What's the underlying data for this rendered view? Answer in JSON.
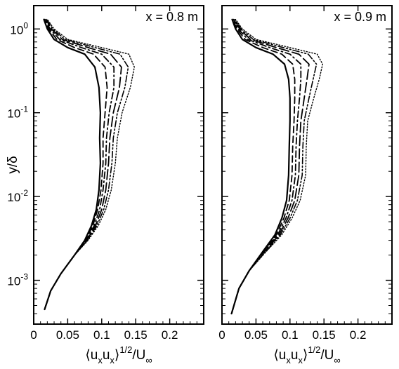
{
  "figure": {
    "ylabel": "y/δ"
  },
  "chart_data": [
    {
      "type": "line",
      "panel": "left",
      "annotation": "x = 0.8 m",
      "xlabel_parts": {
        "open": "⟨u",
        "sub1": "x",
        "mid": "u",
        "sub2": "x",
        "close": "⟩",
        "sup": "1/2",
        "tail": "/U",
        "sub3": "∞"
      },
      "ylabel": "y/δ",
      "xlim": [
        0,
        0.25
      ],
      "ylim": [
        0.0003,
        1.9
      ],
      "y_scale": "log",
      "x_ticks": [
        {
          "v": 0.05,
          "label": "0.05"
        },
        {
          "v": 0.1,
          "label": "0.1"
        },
        {
          "v": 0.15,
          "label": "0.15"
        },
        {
          "v": 0.2,
          "label": "0.2"
        },
        {
          "v": 0,
          "label": "0"
        }
      ],
      "y_ticks": [
        {
          "v": 0.001,
          "base": "10",
          "exp": "-3"
        },
        {
          "v": 0.01,
          "base": "10",
          "exp": "-2"
        },
        {
          "v": 0.1,
          "base": "10",
          "exp": "-1"
        },
        {
          "v": 1,
          "base": "10",
          "exp": "0"
        }
      ],
      "grid": false,
      "legend": "none",
      "series": [
        {
          "style": "solid",
          "points": [
            [
              0.016,
              0.00045
            ],
            [
              0.025,
              0.00075
            ],
            [
              0.04,
              0.0012
            ],
            [
              0.06,
              0.002
            ],
            [
              0.075,
              0.003
            ],
            [
              0.085,
              0.0045
            ],
            [
              0.092,
              0.007
            ],
            [
              0.096,
              0.012
            ],
            [
              0.098,
              0.025
            ],
            [
              0.097,
              0.05
            ],
            [
              0.098,
              0.1
            ],
            [
              0.096,
              0.2
            ],
            [
              0.09,
              0.35
            ],
            [
              0.075,
              0.5
            ],
            [
              0.05,
              0.6
            ],
            [
              0.03,
              0.75
            ],
            [
              0.02,
              1.0
            ],
            [
              0.015,
              1.3
            ]
          ]
        },
        {
          "style": "dash",
          "points": [
            [
              0.016,
              0.00045
            ],
            [
              0.025,
              0.00075
            ],
            [
              0.04,
              0.0012
            ],
            [
              0.06,
              0.002
            ],
            [
              0.076,
              0.003
            ],
            [
              0.087,
              0.0045
            ],
            [
              0.094,
              0.007
            ],
            [
              0.099,
              0.012
            ],
            [
              0.102,
              0.025
            ],
            [
              0.102,
              0.05
            ],
            [
              0.105,
              0.1
            ],
            [
              0.108,
              0.2
            ],
            [
              0.105,
              0.35
            ],
            [
              0.088,
              0.5
            ],
            [
              0.06,
              0.6
            ],
            [
              0.034,
              0.75
            ],
            [
              0.022,
              1.0
            ],
            [
              0.016,
              1.3
            ]
          ]
        },
        {
          "style": "dashdot",
          "points": [
            [
              0.016,
              0.00045
            ],
            [
              0.025,
              0.00075
            ],
            [
              0.04,
              0.0012
            ],
            [
              0.06,
              0.002
            ],
            [
              0.077,
              0.003
            ],
            [
              0.089,
              0.0045
            ],
            [
              0.097,
              0.007
            ],
            [
              0.102,
              0.012
            ],
            [
              0.106,
              0.025
            ],
            [
              0.107,
              0.05
            ],
            [
              0.111,
              0.1
            ],
            [
              0.118,
              0.2
            ],
            [
              0.118,
              0.35
            ],
            [
              0.1,
              0.5
            ],
            [
              0.07,
              0.6
            ],
            [
              0.038,
              0.75
            ],
            [
              0.024,
              1.0
            ],
            [
              0.017,
              1.3
            ]
          ]
        },
        {
          "style": "longdash",
          "points": [
            [
              0.016,
              0.00045
            ],
            [
              0.025,
              0.00075
            ],
            [
              0.04,
              0.0012
            ],
            [
              0.06,
              0.002
            ],
            [
              0.078,
              0.003
            ],
            [
              0.091,
              0.0045
            ],
            [
              0.1,
              0.007
            ],
            [
              0.106,
              0.012
            ],
            [
              0.11,
              0.025
            ],
            [
              0.112,
              0.05
            ],
            [
              0.117,
              0.1
            ],
            [
              0.126,
              0.2
            ],
            [
              0.129,
              0.35
            ],
            [
              0.113,
              0.5
            ],
            [
              0.08,
              0.6
            ],
            [
              0.042,
              0.75
            ],
            [
              0.026,
              1.0
            ],
            [
              0.018,
              1.3
            ]
          ]
        },
        {
          "style": "dashdotdot",
          "points": [
            [
              0.016,
              0.00045
            ],
            [
              0.025,
              0.00075
            ],
            [
              0.04,
              0.0012
            ],
            [
              0.06,
              0.002
            ],
            [
              0.079,
              0.003
            ],
            [
              0.093,
              0.0045
            ],
            [
              0.103,
              0.007
            ],
            [
              0.11,
              0.012
            ],
            [
              0.115,
              0.025
            ],
            [
              0.117,
              0.05
            ],
            [
              0.123,
              0.1
            ],
            [
              0.134,
              0.2
            ],
            [
              0.139,
              0.35
            ],
            [
              0.127,
              0.5
            ],
            [
              0.09,
              0.6
            ],
            [
              0.046,
              0.75
            ],
            [
              0.028,
              1.0
            ],
            [
              0.019,
              1.3
            ]
          ]
        },
        {
          "style": "dotted",
          "points": [
            [
              0.016,
              0.00045
            ],
            [
              0.025,
              0.00075
            ],
            [
              0.04,
              0.0012
            ],
            [
              0.06,
              0.002
            ],
            [
              0.08,
              0.003
            ],
            [
              0.095,
              0.0045
            ],
            [
              0.106,
              0.007
            ],
            [
              0.114,
              0.012
            ],
            [
              0.12,
              0.025
            ],
            [
              0.123,
              0.05
            ],
            [
              0.13,
              0.1
            ],
            [
              0.142,
              0.2
            ],
            [
              0.148,
              0.35
            ],
            [
              0.14,
              0.5
            ],
            [
              0.1,
              0.6
            ],
            [
              0.05,
              0.75
            ],
            [
              0.03,
              1.0
            ],
            [
              0.02,
              1.3
            ]
          ]
        }
      ]
    },
    {
      "type": "line",
      "panel": "right",
      "annotation": "x = 0.9 m",
      "xlabel_parts": {
        "open": "⟨u",
        "sub1": "x",
        "mid": "u",
        "sub2": "x",
        "close": "⟩",
        "sup": "1/2",
        "tail": "/U",
        "sub3": "∞"
      },
      "xlim": [
        0,
        0.25
      ],
      "ylim": [
        0.0003,
        1.9
      ],
      "y_scale": "log",
      "x_ticks": [
        {
          "v": 0.05,
          "label": "0.05"
        },
        {
          "v": 0.1,
          "label": "0.1"
        },
        {
          "v": 0.15,
          "label": "0.15"
        },
        {
          "v": 0.2,
          "label": "0.2"
        },
        {
          "v": 0,
          "label": "0"
        }
      ],
      "y_ticks": [],
      "grid": false,
      "legend": "none",
      "series": [
        {
          "style": "solid",
          "points": [
            [
              0.014,
              0.0004
            ],
            [
              0.025,
              0.0008
            ],
            [
              0.04,
              0.0013
            ],
            [
              0.06,
              0.0022
            ],
            [
              0.078,
              0.0035
            ],
            [
              0.088,
              0.0055
            ],
            [
              0.095,
              0.009
            ],
            [
              0.098,
              0.018
            ],
            [
              0.099,
              0.04
            ],
            [
              0.1,
              0.08
            ],
            [
              0.1,
              0.15
            ],
            [
              0.098,
              0.25
            ],
            [
              0.092,
              0.38
            ],
            [
              0.075,
              0.5
            ],
            [
              0.05,
              0.6
            ],
            [
              0.03,
              0.75
            ],
            [
              0.02,
              1.0
            ],
            [
              0.015,
              1.3
            ]
          ]
        },
        {
          "style": "dash",
          "points": [
            [
              0.014,
              0.0004
            ],
            [
              0.025,
              0.0008
            ],
            [
              0.04,
              0.0013
            ],
            [
              0.061,
              0.0022
            ],
            [
              0.08,
              0.0035
            ],
            [
              0.091,
              0.0055
            ],
            [
              0.099,
              0.009
            ],
            [
              0.103,
              0.018
            ],
            [
              0.104,
              0.04
            ],
            [
              0.106,
              0.08
            ],
            [
              0.107,
              0.15
            ],
            [
              0.107,
              0.25
            ],
            [
              0.104,
              0.38
            ],
            [
              0.088,
              0.5
            ],
            [
              0.06,
              0.6
            ],
            [
              0.034,
              0.75
            ],
            [
              0.022,
              1.0
            ],
            [
              0.016,
              1.3
            ]
          ]
        },
        {
          "style": "dashdot",
          "points": [
            [
              0.014,
              0.0004
            ],
            [
              0.025,
              0.0008
            ],
            [
              0.04,
              0.0013
            ],
            [
              0.062,
              0.0022
            ],
            [
              0.082,
              0.0035
            ],
            [
              0.094,
              0.0055
            ],
            [
              0.103,
              0.009
            ],
            [
              0.108,
              0.018
            ],
            [
              0.109,
              0.04
            ],
            [
              0.111,
              0.08
            ],
            [
              0.114,
              0.15
            ],
            [
              0.116,
              0.25
            ],
            [
              0.116,
              0.38
            ],
            [
              0.1,
              0.5
            ],
            [
              0.07,
              0.6
            ],
            [
              0.038,
              0.75
            ],
            [
              0.024,
              1.0
            ],
            [
              0.017,
              1.3
            ]
          ]
        },
        {
          "style": "longdash",
          "points": [
            [
              0.014,
              0.0004
            ],
            [
              0.025,
              0.0008
            ],
            [
              0.04,
              0.0013
            ],
            [
              0.063,
              0.0022
            ],
            [
              0.084,
              0.0035
            ],
            [
              0.097,
              0.0055
            ],
            [
              0.107,
              0.009
            ],
            [
              0.113,
              0.018
            ],
            [
              0.114,
              0.04
            ],
            [
              0.116,
              0.08
            ],
            [
              0.121,
              0.15
            ],
            [
              0.125,
              0.25
            ],
            [
              0.128,
              0.38
            ],
            [
              0.113,
              0.5
            ],
            [
              0.08,
              0.6
            ],
            [
              0.042,
              0.75
            ],
            [
              0.026,
              1.0
            ],
            [
              0.018,
              1.3
            ]
          ]
        },
        {
          "style": "dashdotdot",
          "points": [
            [
              0.014,
              0.0004
            ],
            [
              0.025,
              0.0008
            ],
            [
              0.04,
              0.0013
            ],
            [
              0.064,
              0.0022
            ],
            [
              0.086,
              0.0035
            ],
            [
              0.1,
              0.0055
            ],
            [
              0.111,
              0.009
            ],
            [
              0.118,
              0.018
            ],
            [
              0.119,
              0.04
            ],
            [
              0.121,
              0.08
            ],
            [
              0.128,
              0.15
            ],
            [
              0.134,
              0.25
            ],
            [
              0.139,
              0.38
            ],
            [
              0.127,
              0.5
            ],
            [
              0.09,
              0.6
            ],
            [
              0.046,
              0.75
            ],
            [
              0.028,
              1.0
            ],
            [
              0.019,
              1.3
            ]
          ]
        },
        {
          "style": "dotted",
          "points": [
            [
              0.014,
              0.0004
            ],
            [
              0.025,
              0.0008
            ],
            [
              0.04,
              0.0013
            ],
            [
              0.065,
              0.0022
            ],
            [
              0.088,
              0.0035
            ],
            [
              0.103,
              0.0055
            ],
            [
              0.115,
              0.009
            ],
            [
              0.123,
              0.018
            ],
            [
              0.124,
              0.04
            ],
            [
              0.126,
              0.08
            ],
            [
              0.135,
              0.15
            ],
            [
              0.143,
              0.25
            ],
            [
              0.148,
              0.38
            ],
            [
              0.14,
              0.5
            ],
            [
              0.1,
              0.6
            ],
            [
              0.05,
              0.75
            ],
            [
              0.03,
              1.0
            ],
            [
              0.02,
              1.3
            ]
          ]
        }
      ]
    }
  ]
}
